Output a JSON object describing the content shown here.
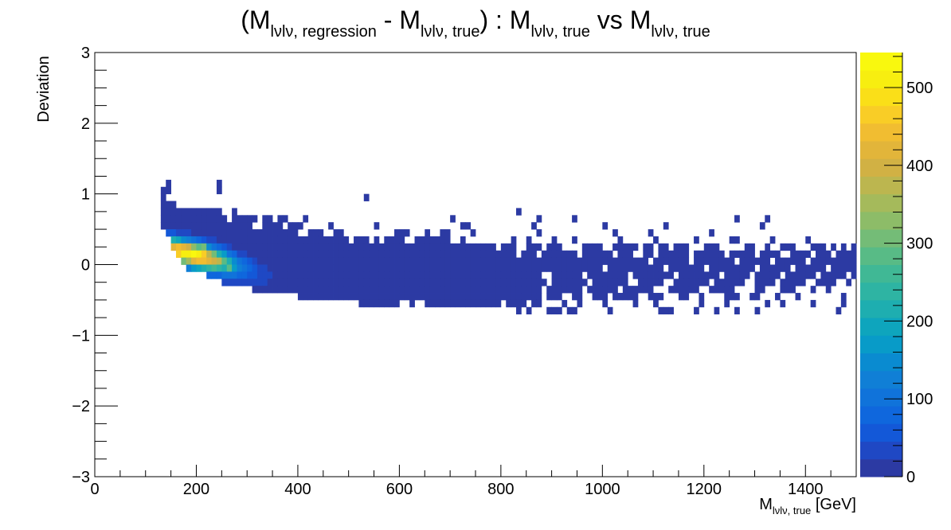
{
  "chart_data": {
    "type": "heatmap",
    "title": {
      "parts": [
        {
          "t": "(M"
        },
        {
          "t": "lνlν, regression",
          "sub": true
        },
        {
          "t": " - M"
        },
        {
          "t": "lνlν, true",
          "sub": true
        },
        {
          "t": ") : M"
        },
        {
          "t": "lνlν, true",
          "sub": true
        },
        {
          "t": " vs M"
        },
        {
          "t": "lνlν, true",
          "sub": true
        }
      ]
    },
    "xlabel": {
      "main": "M",
      "sub": "lνlν, true",
      "unit": " [GeV]"
    },
    "ylabel": "Deviation",
    "xlim": [
      0,
      1500
    ],
    "ylim": [
      -3,
      3
    ],
    "x_ticks": [
      "0",
      "200",
      "400",
      "600",
      "800",
      "1000",
      "1200",
      "1400"
    ],
    "x_tick_values": [
      0,
      200,
      400,
      600,
      800,
      1000,
      1200,
      1400
    ],
    "y_ticks": [
      "3",
      "2",
      "1",
      "0",
      "−1",
      "−2",
      "−3"
    ],
    "y_tick_values": [
      3,
      2,
      1,
      0,
      -1,
      -2,
      -3
    ],
    "z_range": [
      0,
      545
    ],
    "z_ticks": [
      "0",
      "100",
      "200",
      "300",
      "400",
      "500"
    ],
    "z_tick_values": [
      0,
      100,
      200,
      300,
      400,
      500
    ],
    "bin_width_x": 10,
    "bin_width_y": 0.1,
    "palette": [
      "#2c3aa3",
      "#1f48c4",
      "#1358d8",
      "#0f67dd",
      "#1073da",
      "#107fd6",
      "#0a8bd0",
      "#089bc8",
      "#0ea5bd",
      "#1eaeb0",
      "#2eb4a3",
      "#40b895",
      "#58bb86",
      "#74bc77",
      "#8dbc68",
      "#a5ba5b",
      "#bcb64f",
      "#d1b144",
      "#e2b53a",
      "#f1bd31",
      "#f9cd26",
      "#fadf18",
      "#f7ee10",
      "#f9f80e"
    ],
    "populated_region": [
      {
        "y": 1.15,
        "x": [
          [
            140,
            150
          ],
          [
            240,
            250
          ]
        ]
      },
      {
        "y": 1.05,
        "x": [
          [
            130,
            150
          ],
          [
            240,
            250
          ]
        ]
      },
      {
        "y": 0.95,
        "x": [
          [
            130,
            140
          ],
          [
            530,
            540
          ]
        ]
      },
      {
        "y": 0.85,
        "x": [
          [
            130,
            160
          ]
        ]
      },
      {
        "y": 0.75,
        "x": [
          [
            130,
            250
          ],
          [
            270,
            280
          ],
          [
            830,
            840
          ]
        ]
      },
      {
        "y": 0.65,
        "x": [
          [
            130,
            260
          ],
          [
            270,
            320
          ],
          [
            330,
            350
          ],
          [
            360,
            380
          ],
          [
            410,
            420
          ],
          [
            700,
            710
          ],
          [
            870,
            880
          ],
          [
            940,
            950
          ],
          [
            1260,
            1270
          ],
          [
            1320,
            1330
          ]
        ]
      },
      {
        "y": 0.55,
        "x": [
          [
            130,
            310
          ],
          [
            330,
            370
          ],
          [
            380,
            410
          ],
          [
            460,
            470
          ],
          [
            550,
            560
          ],
          [
            720,
            740
          ],
          [
            860,
            870
          ],
          [
            1000,
            1010
          ],
          [
            1120,
            1130
          ],
          [
            1310,
            1320
          ]
        ]
      },
      {
        "y": 0.45,
        "x": [
          [
            140,
            400
          ],
          [
            420,
            450
          ],
          [
            470,
            490
          ],
          [
            590,
            620
          ],
          [
            650,
            660
          ],
          [
            680,
            700
          ],
          [
            740,
            750
          ],
          [
            870,
            880
          ],
          [
            1020,
            1030
          ],
          [
            1090,
            1100
          ],
          [
            1210,
            1220
          ]
        ]
      },
      {
        "y": 0.35,
        "x": [
          [
            150,
            500
          ],
          [
            510,
            540
          ],
          [
            550,
            560
          ],
          [
            570,
            610
          ],
          [
            630,
            700
          ],
          [
            720,
            730
          ],
          [
            820,
            830
          ],
          [
            850,
            860
          ],
          [
            900,
            910
          ],
          [
            940,
            950
          ],
          [
            1030,
            1040
          ],
          [
            1100,
            1110
          ],
          [
            1180,
            1190
          ],
          [
            1250,
            1270
          ],
          [
            1330,
            1340
          ],
          [
            1400,
            1410
          ]
        ]
      },
      {
        "y": 0.25,
        "x": [
          [
            150,
            790
          ],
          [
            800,
            830
          ],
          [
            850,
            880
          ],
          [
            890,
            920
          ],
          [
            960,
            1000
          ],
          [
            1020,
            1070
          ],
          [
            1080,
            1100
          ],
          [
            1110,
            1130
          ],
          [
            1140,
            1170
          ],
          [
            1200,
            1230
          ],
          [
            1280,
            1300
          ],
          [
            1320,
            1330
          ],
          [
            1350,
            1380
          ],
          [
            1410,
            1440
          ],
          [
            1450,
            1460
          ],
          [
            1470,
            1480
          ],
          [
            1490,
            1500
          ]
        ]
      },
      {
        "y": 0.15,
        "x": [
          [
            160,
            830
          ],
          [
            840,
            870
          ],
          [
            880,
            950
          ],
          [
            960,
            1020
          ],
          [
            1030,
            1060
          ],
          [
            1080,
            1100
          ],
          [
            1110,
            1170
          ],
          [
            1180,
            1240
          ],
          [
            1250,
            1300
          ],
          [
            1310,
            1350
          ],
          [
            1370,
            1410
          ],
          [
            1420,
            1450
          ],
          [
            1460,
            1500
          ]
        ]
      },
      {
        "y": 0.05,
        "x": [
          [
            170,
            1090
          ],
          [
            1100,
            1170
          ],
          [
            1180,
            1260
          ],
          [
            1270,
            1330
          ],
          [
            1340,
            1400
          ],
          [
            1410,
            1500
          ]
        ]
      },
      {
        "y": -0.05,
        "x": [
          [
            180,
            1000
          ],
          [
            1010,
            1120
          ],
          [
            1130,
            1200
          ],
          [
            1210,
            1300
          ],
          [
            1310,
            1370
          ],
          [
            1380,
            1440
          ],
          [
            1450,
            1500
          ]
        ]
      },
      {
        "y": -0.15,
        "x": [
          [
            220,
            880
          ],
          [
            900,
            960
          ],
          [
            970,
            1050
          ],
          [
            1060,
            1140
          ],
          [
            1150,
            1230
          ],
          [
            1240,
            1290
          ],
          [
            1300,
            1350
          ],
          [
            1360,
            1420
          ],
          [
            1430,
            1480
          ],
          [
            1490,
            1500
          ]
        ]
      },
      {
        "y": -0.25,
        "x": [
          [
            250,
            890
          ],
          [
            900,
            970
          ],
          [
            980,
            1050
          ],
          [
            1070,
            1120
          ],
          [
            1140,
            1210
          ],
          [
            1220,
            1280
          ],
          [
            1300,
            1340
          ],
          [
            1350,
            1400
          ],
          [
            1420,
            1460
          ],
          [
            1480,
            1490
          ]
        ]
      },
      {
        "y": -0.35,
        "x": [
          [
            310,
            880
          ],
          [
            890,
            960
          ],
          [
            970,
            1030
          ],
          [
            1040,
            1100
          ],
          [
            1130,
            1190
          ],
          [
            1210,
            1260
          ],
          [
            1300,
            1320
          ],
          [
            1350,
            1380
          ],
          [
            1410,
            1420
          ],
          [
            1440,
            1450
          ]
        ]
      },
      {
        "y": -0.45,
        "x": [
          [
            400,
            880
          ],
          [
            890,
            920
          ],
          [
            940,
            960
          ],
          [
            980,
            1010
          ],
          [
            1020,
            1070
          ],
          [
            1090,
            1120
          ],
          [
            1150,
            1170
          ],
          [
            1190,
            1200
          ],
          [
            1240,
            1270
          ],
          [
            1290,
            1310
          ],
          [
            1340,
            1350
          ],
          [
            1380,
            1390
          ],
          [
            1470,
            1480
          ]
        ]
      },
      {
        "y": -0.55,
        "x": [
          [
            520,
            600
          ],
          [
            620,
            630
          ],
          [
            650,
            800
          ],
          [
            810,
            850
          ],
          [
            860,
            880
          ],
          [
            920,
            930
          ],
          [
            950,
            960
          ],
          [
            1000,
            1010
          ],
          [
            1060,
            1070
          ],
          [
            1100,
            1110
          ],
          [
            1190,
            1200
          ],
          [
            1240,
            1250
          ],
          [
            1320,
            1330
          ],
          [
            1350,
            1360
          ],
          [
            1410,
            1420
          ],
          [
            1470,
            1480
          ]
        ]
      },
      {
        "y": -0.65,
        "x": [
          [
            830,
            840
          ],
          [
            850,
            860
          ],
          [
            890,
            920
          ],
          [
            930,
            950
          ],
          [
            1010,
            1020
          ],
          [
            1110,
            1140
          ],
          [
            1180,
            1190
          ],
          [
            1220,
            1230
          ],
          [
            1260,
            1270
          ],
          [
            1300,
            1310
          ],
          [
            1460,
            1470
          ]
        ]
      }
    ],
    "density_peaks": [
      {
        "x": 180,
        "y": 0.25,
        "z": 400
      },
      {
        "x": 180,
        "y": 0.15,
        "z": 520
      },
      {
        "x": 200,
        "y": 0.15,
        "z": 500
      },
      {
        "x": 220,
        "y": 0.05,
        "z": 430
      },
      {
        "x": 210,
        "y": 0.25,
        "z": 300
      },
      {
        "x": 240,
        "y": 0.05,
        "z": 380
      },
      {
        "x": 260,
        "y": -0.05,
        "z": 280
      }
    ]
  }
}
